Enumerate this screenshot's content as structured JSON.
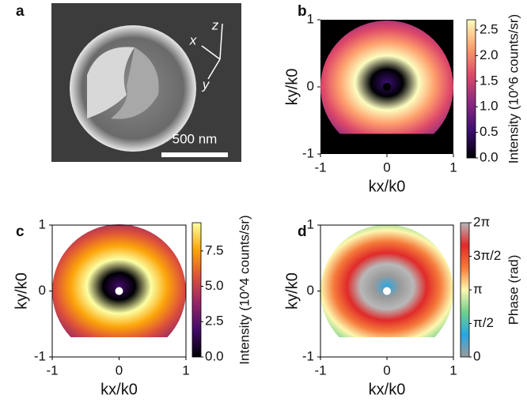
{
  "chart_data": [
    {
      "type": "image",
      "label": "a",
      "scalebar": "500 nm",
      "axes": [
        "x",
        "y",
        "z"
      ]
    },
    {
      "type": "heatmap",
      "label": "b",
      "xlabel": "kx/k0",
      "ylabel": "ky/k0",
      "xlim": [
        -1,
        1
      ],
      "ylim": [
        -1,
        1
      ],
      "xticks": [
        -1,
        0,
        1
      ],
      "yticks": [
        -1,
        0,
        1
      ],
      "background": "#000000",
      "colormap": [
        "#000004",
        "#3b0f70",
        "#8c2981",
        "#de4968",
        "#fe9f6d",
        "#fcfdbf"
      ],
      "clim": [
        0,
        2.7
      ],
      "clabel": "Intensity (10^6 counts/sr)",
      "cticks": [
        {
          "value": 0,
          "label": "0.0"
        },
        {
          "value": 0.5,
          "label": "0.5"
        },
        {
          "value": 1,
          "label": "1.0"
        },
        {
          "value": 1.5,
          "label": "1.5"
        },
        {
          "value": 2,
          "label": "2.0"
        },
        {
          "value": 2.5,
          "label": "2.5"
        }
      ]
    },
    {
      "type": "heatmap",
      "label": "c",
      "xlabel": "kx/k0",
      "ylabel": "ky/k0",
      "xlim": [
        -1,
        1
      ],
      "ylim": [
        -1,
        1
      ],
      "xticks": [
        -1,
        0,
        1
      ],
      "yticks": [
        -1,
        0,
        1
      ],
      "background": "#ffffff",
      "colormap": [
        "#000004",
        "#420a68",
        "#932667",
        "#dd513a",
        "#fca50a",
        "#fcffa4"
      ],
      "clim": [
        0,
        9.5
      ],
      "clabel": "Intensity (10^4 counts/sr)",
      "cticks": [
        {
          "value": 0,
          "label": "0.0"
        },
        {
          "value": 2.5,
          "label": "2.5"
        },
        {
          "value": 5,
          "label": "5.0"
        },
        {
          "value": 7.5,
          "label": "7.5"
        }
      ]
    },
    {
      "type": "heatmap",
      "label": "d",
      "xlabel": "kx/k0",
      "ylabel": "ky/k0",
      "xlim": [
        -1,
        1
      ],
      "ylim": [
        -1,
        1
      ],
      "xticks": [
        -1,
        0,
        1
      ],
      "yticks": [
        -1,
        0,
        1
      ],
      "background": "#ffffff",
      "colormap": [
        "#9a9a9a",
        "#2aa6e0",
        "#6fd08a",
        "#fdf7b0",
        "#f57a3a",
        "#e02a2a",
        "#b8b8b8"
      ],
      "clim": [
        0,
        6.2832
      ],
      "clabel": "Phase (rad)",
      "cticks": [
        {
          "value": 0,
          "label": "0"
        },
        {
          "value": 1.5708,
          "label": "π/2"
        },
        {
          "value": 3.1416,
          "label": "π"
        },
        {
          "value": 4.7124,
          "label": "3π/2"
        },
        {
          "value": 6.2832,
          "label": "2π"
        }
      ]
    }
  ]
}
